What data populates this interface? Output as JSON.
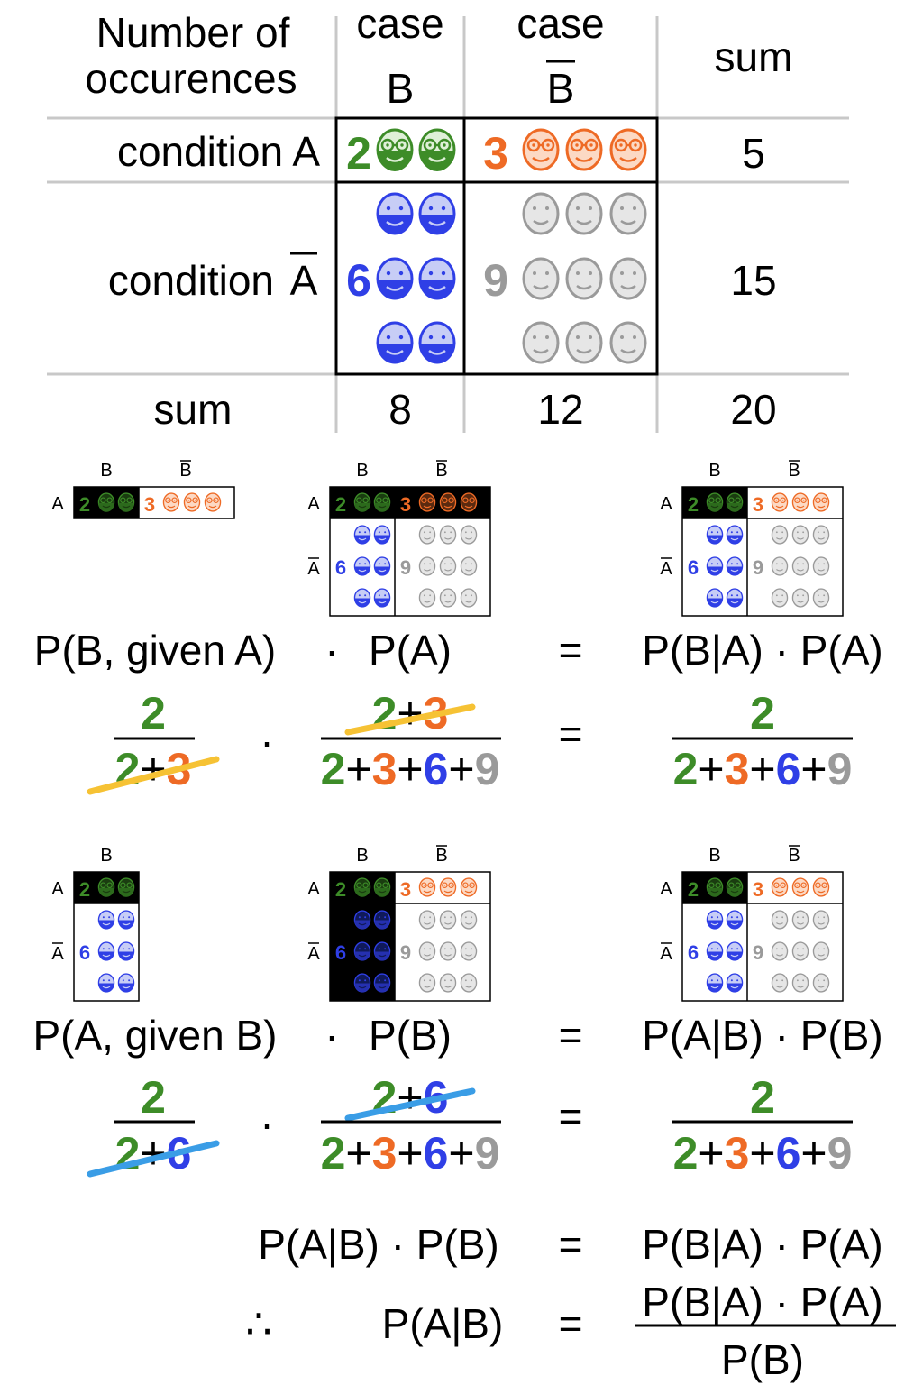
{
  "colors": {
    "green": "#3d8c28",
    "orange": "#ee6a25",
    "blue": "#2f3fe6",
    "gray": "#9a9a9a",
    "strike_yellow": "#f6c234",
    "strike_blue": "#3a9de6",
    "rule": "#c8c8c8",
    "black": "#000000"
  },
  "table": {
    "header_line1": "Number of",
    "header_line2": "occurences",
    "case_label": "case",
    "col_b": "B",
    "col_b_bar": "B",
    "col_sum": "sum",
    "row_a": "condition A",
    "row_abar_prefix": "condition",
    "row_abar_letter": "A",
    "row_sum": "sum",
    "cells": {
      "ab": "2",
      "abbar": "3",
      "abarb": "6",
      "abarbbar": "9"
    },
    "sums": {
      "row_a": "5",
      "row_abar": "15",
      "col_b": "8",
      "col_bbar": "12",
      "total": "20"
    },
    "icons": {
      "ab": "green-glasses-face-icon",
      "abbar": "orange-glasses-face-icon",
      "abarb": "blue-face-icon",
      "abarbbar": "gray-face-icon"
    }
  },
  "mini": {
    "b": "B",
    "bbar": "B",
    "a": "A",
    "abar": "A",
    "n_ab": "2",
    "n_abbar": "3",
    "n_abarb": "6",
    "n_abarbbar": "9"
  },
  "section1": {
    "lhs_term": "P(B, given A)",
    "dot": "·",
    "p_a": "P(A)",
    "eq": "=",
    "rhs": "P(B|A) · P(A)",
    "f1_num": "2",
    "f1_den": [
      "2",
      "+",
      "3"
    ],
    "f2_num": [
      "2",
      "+",
      "3"
    ],
    "f2_den": [
      "2",
      "+",
      "3",
      "+",
      "6",
      "+",
      "9"
    ],
    "f3_num": "2",
    "f3_den": [
      "2",
      "+",
      "3",
      "+",
      "6",
      "+",
      "9"
    ]
  },
  "section2": {
    "lhs_term": "P(A, given B)",
    "dot": "·",
    "p_b": "P(B)",
    "eq": "=",
    "rhs": "P(A|B) · P(B)",
    "f1_num": "2",
    "f1_den": [
      "2",
      "+",
      "6"
    ],
    "f2_num": [
      "2",
      "+",
      "6"
    ],
    "f2_den": [
      "2",
      "+",
      "3",
      "+",
      "6",
      "+",
      "9"
    ],
    "f3_num": "2",
    "f3_den": [
      "2",
      "+",
      "3",
      "+",
      "6",
      "+",
      "9"
    ]
  },
  "conclusion": {
    "line1_lhs": "P(A|B) · P(B)",
    "line1_eq": "=",
    "line1_rhs": "P(B|A) · P(A)",
    "therefore": "∴",
    "line2_lhs": "P(A|B)",
    "line2_eq": "=",
    "line2_num": "P(B|A) · P(A)",
    "line2_den": "P(B)"
  }
}
